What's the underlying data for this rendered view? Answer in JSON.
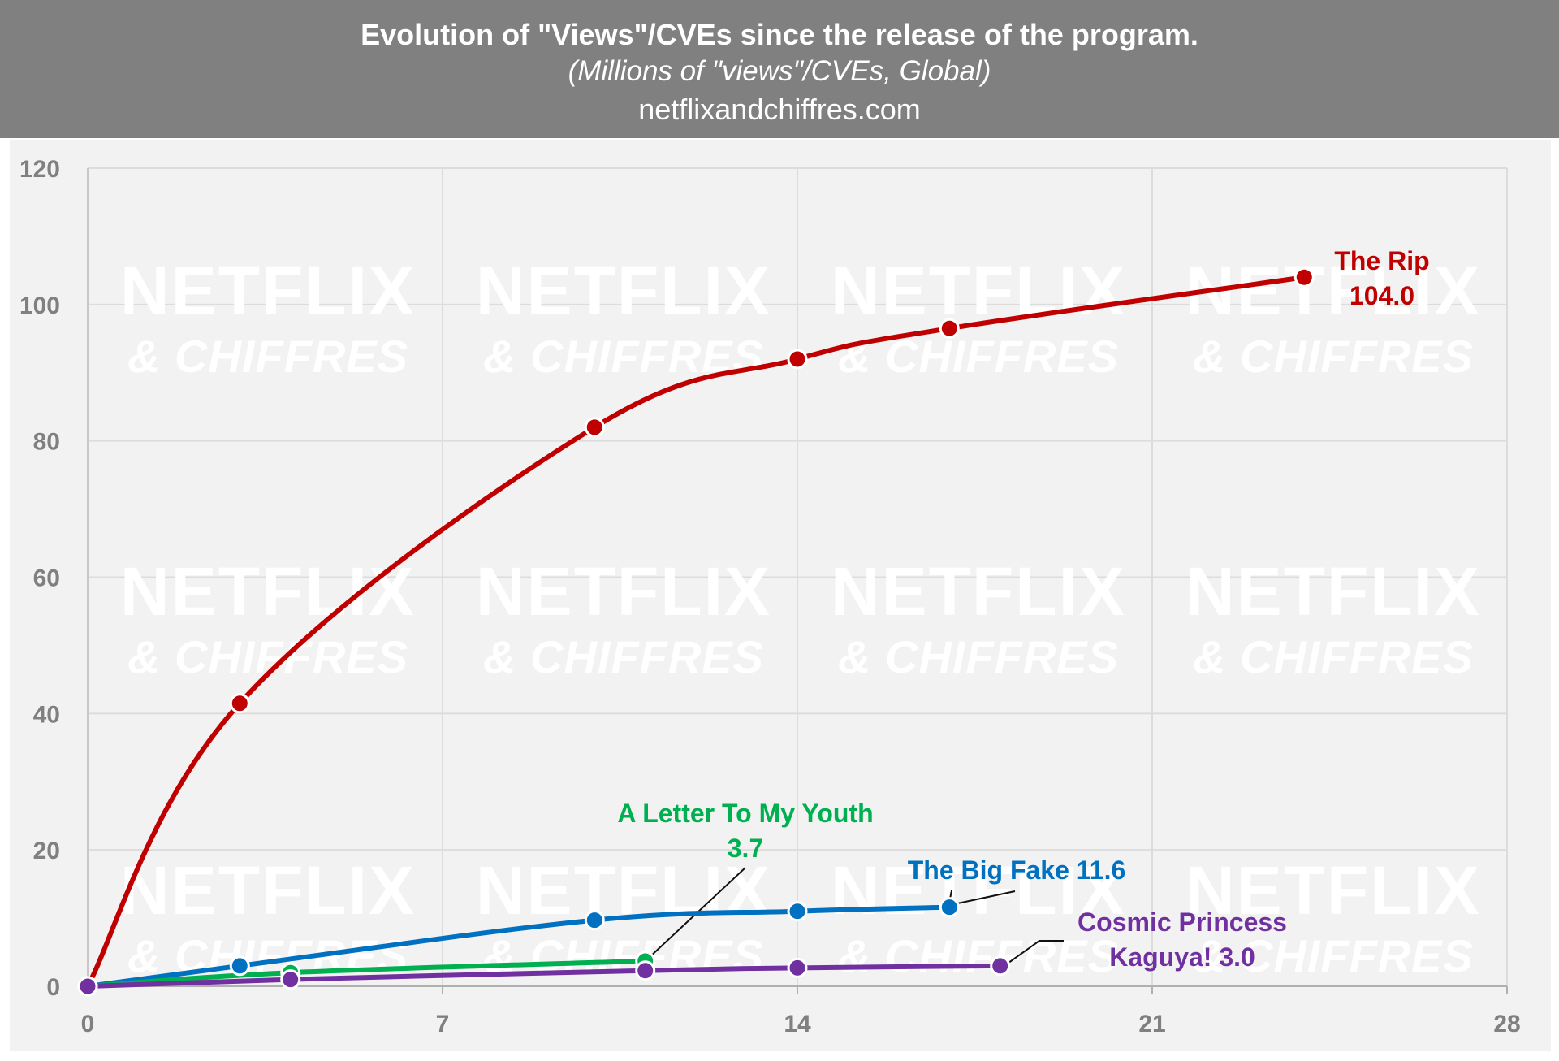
{
  "header": {
    "title": "Evolution of \"Views\"/CVEs since the release of the program.",
    "subtitle": "(Millions of \"views\"/CVEs, Global)",
    "source": "netflixandchiffres.com"
  },
  "watermark": {
    "line1": "NETFLIX",
    "line2": "& CHIFFRES"
  },
  "colors": {
    "header_bg": "#808080",
    "plot_bg": "#f2f2f2",
    "grid": "#dcdcdc",
    "axis_text": "#808080"
  },
  "chart_data": {
    "type": "line",
    "title": "Evolution of \"Views\"/CVEs since the release of the program.",
    "subtitle": "(Millions of \"views\"/CVEs, Global)",
    "xlabel": "",
    "ylabel": "",
    "xlim": [
      0,
      28
    ],
    "ylim": [
      0,
      120
    ],
    "xticks": [
      0,
      7,
      14,
      21,
      28
    ],
    "yticks": [
      0,
      20,
      40,
      60,
      80,
      100,
      120
    ],
    "grid": true,
    "series": [
      {
        "name": "The Rip",
        "color": "#c00000",
        "x": [
          0,
          3,
          10,
          14,
          17,
          24
        ],
        "y": [
          0,
          41.5,
          82,
          92,
          96.5,
          104.0
        ],
        "label_lines": [
          "The Rip",
          "104.0"
        ]
      },
      {
        "name": "The Big Fake",
        "color": "#0070c0",
        "x": [
          0,
          3,
          10,
          14,
          17
        ],
        "y": [
          0,
          3,
          9.7,
          11,
          11.6
        ],
        "label_lines": [
          "The Big Fake 11.6"
        ]
      },
      {
        "name": "A Letter To My Youth",
        "color": "#00b050",
        "x": [
          0,
          4,
          11
        ],
        "y": [
          0,
          2,
          3.7
        ],
        "label_lines": [
          "A Letter To My Youth",
          "3.7"
        ]
      },
      {
        "name": "Cosmic Princess Kaguya!",
        "color": "#7030a0",
        "x": [
          0,
          4,
          11,
          14,
          18
        ],
        "y": [
          0,
          1,
          2.3,
          2.7,
          3.0
        ],
        "label_lines": [
          "Cosmic Princess",
          "Kaguya! 3.0"
        ]
      }
    ]
  }
}
